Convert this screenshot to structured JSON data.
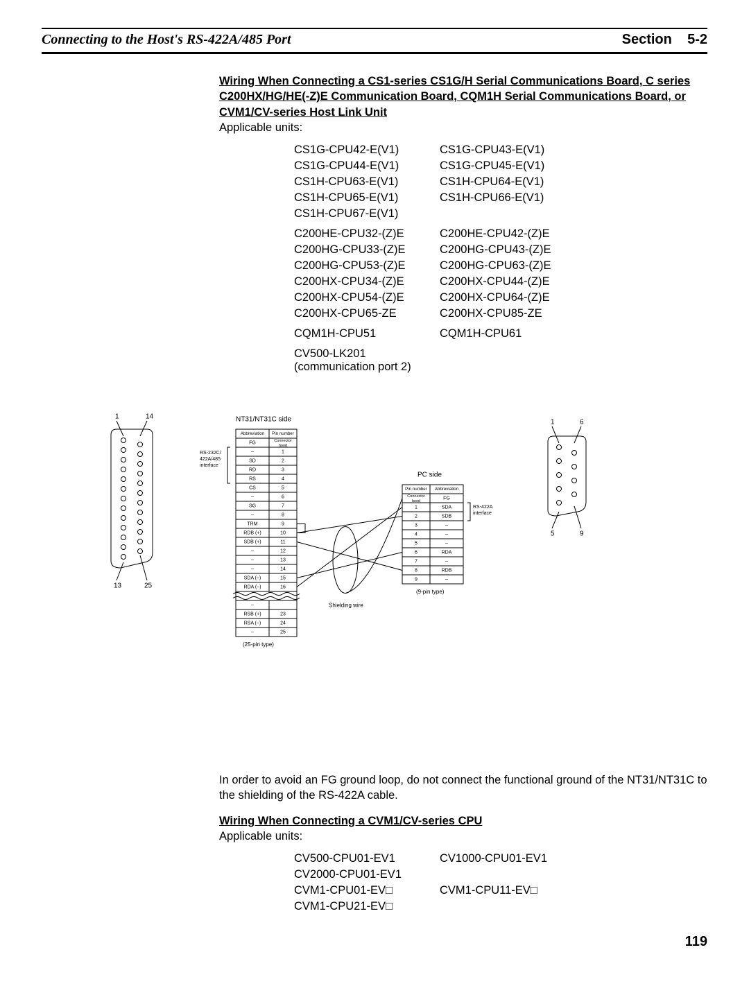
{
  "header": {
    "left": "Connecting to the Host's RS-422A/485 Port",
    "rightLabel": "Section",
    "rightNum": "5-2"
  },
  "section1": {
    "title": "Wiring When Connecting a CS1-series CS1G/H Serial Communications Board, C series C200HX/HG/HE(-Z)E Communication Board, CQM1H Serial Communications Board, or CVM1/CV-series Host Link Unit",
    "sub": "Applicable units:",
    "groups": [
      [
        [
          "CS1G-CPU42-E(V1)",
          "CS1G-CPU43-E(V1)"
        ],
        [
          "CS1G-CPU44-E(V1)",
          "CS1G-CPU45-E(V1)"
        ],
        [
          "CS1H-CPU63-E(V1)",
          "CS1H-CPU64-E(V1)"
        ],
        [
          "CS1H-CPU65-E(V1)",
          "CS1H-CPU66-E(V1)"
        ],
        [
          "CS1H-CPU67-E(V1)",
          ""
        ]
      ],
      [
        [
          "C200HE-CPU32-(Z)E",
          "C200HE-CPU42-(Z)E"
        ],
        [
          "C200HG-CPU33-(Z)E",
          "C200HG-CPU43-(Z)E"
        ],
        [
          "C200HG-CPU53-(Z)E",
          "C200HG-CPU63-(Z)E"
        ],
        [
          "C200HX-CPU34-(Z)E",
          "C200HX-CPU44-(Z)E"
        ],
        [
          "C200HX-CPU54-(Z)E",
          "C200HX-CPU64-(Z)E"
        ],
        [
          "C200HX-CPU65-ZE",
          "C200HX-CPU85-ZE"
        ]
      ],
      [
        [
          "CQM1H-CPU51",
          "CQM1H-CPU61"
        ]
      ],
      [
        [
          "CV500-LK201 (communication port 2)",
          ""
        ]
      ]
    ]
  },
  "diagram": {
    "conn25": {
      "label_tl": "1",
      "label_tr": "14",
      "label_bl": "13",
      "label_br": "25",
      "typeLabel": "(25-pin type)"
    },
    "conn9": {
      "label_tl": "1",
      "label_tr": "6",
      "label_bl": "5",
      "label_br": "9",
      "typeLabel": "(9-pin type)"
    },
    "ntSideTitle": "NT31/NT31C side",
    "pcSideTitle": "PC side",
    "ntIfaceLabel": "RS-232C/\n422A/485\ninterface",
    "pcIfaceLabel": "RS-422A\ninterface",
    "shieldLabel": "Shielding wire",
    "ntHeader": {
      "abbr": "Abbreviation",
      "pin": "Pin number"
    },
    "pcHeader": {
      "abbr": "Abbreviation",
      "pin": "Pin number"
    },
    "ntRows": [
      [
        "FG",
        "Connector hood"
      ],
      [
        "–",
        "1"
      ],
      [
        "SD",
        "2"
      ],
      [
        "RD",
        "3"
      ],
      [
        "RS",
        "4"
      ],
      [
        "CS",
        "5"
      ],
      [
        "–",
        "6"
      ],
      [
        "SG",
        "7"
      ],
      [
        "–",
        "8"
      ],
      [
        "TRM",
        "9"
      ],
      [
        "RDB (+)",
        "10"
      ],
      [
        "SDB (+)",
        "11"
      ],
      [
        "–",
        "12"
      ],
      [
        "–",
        "13"
      ],
      [
        "–",
        "14"
      ],
      [
        "SDA (–)",
        "15"
      ],
      [
        "RDA (–)",
        "16"
      ],
      [
        "",
        ""
      ],
      [
        "–",
        ""
      ],
      [
        "RSB (+)",
        "23"
      ],
      [
        "RSA (–)",
        "24"
      ],
      [
        "–",
        "25"
      ]
    ],
    "pcRows": [
      [
        "Connector hood",
        "FG"
      ],
      [
        "1",
        "SDA"
      ],
      [
        "2",
        "SDB"
      ],
      [
        "3",
        "–"
      ],
      [
        "4",
        "–"
      ],
      [
        "5",
        "–"
      ],
      [
        "6",
        "RDA"
      ],
      [
        "7",
        "–"
      ],
      [
        "8",
        "RDB"
      ],
      [
        "9",
        "–"
      ]
    ]
  },
  "note": "In order to avoid an FG ground loop, do not connect the functional ground of the NT31/NT31C to the shielding of the RS-422A cable.",
  "section2": {
    "title": "Wiring When Connecting a CVM1/CV-series CPU",
    "sub": "Applicable units:",
    "rows": [
      [
        "CV500-CPU01-EV1",
        "CV1000-CPU01-EV1"
      ],
      [
        "CV2000-CPU01-EV1",
        ""
      ],
      [
        "CVM1-CPU01-EV□",
        "CVM1-CPU11-EV□"
      ],
      [
        "CVM1-CPU21-EV□",
        ""
      ]
    ]
  },
  "pageNumber": "119",
  "style": {
    "tableFont": 8,
    "tableBorder": "#000",
    "cellPad": "1px 3px"
  }
}
